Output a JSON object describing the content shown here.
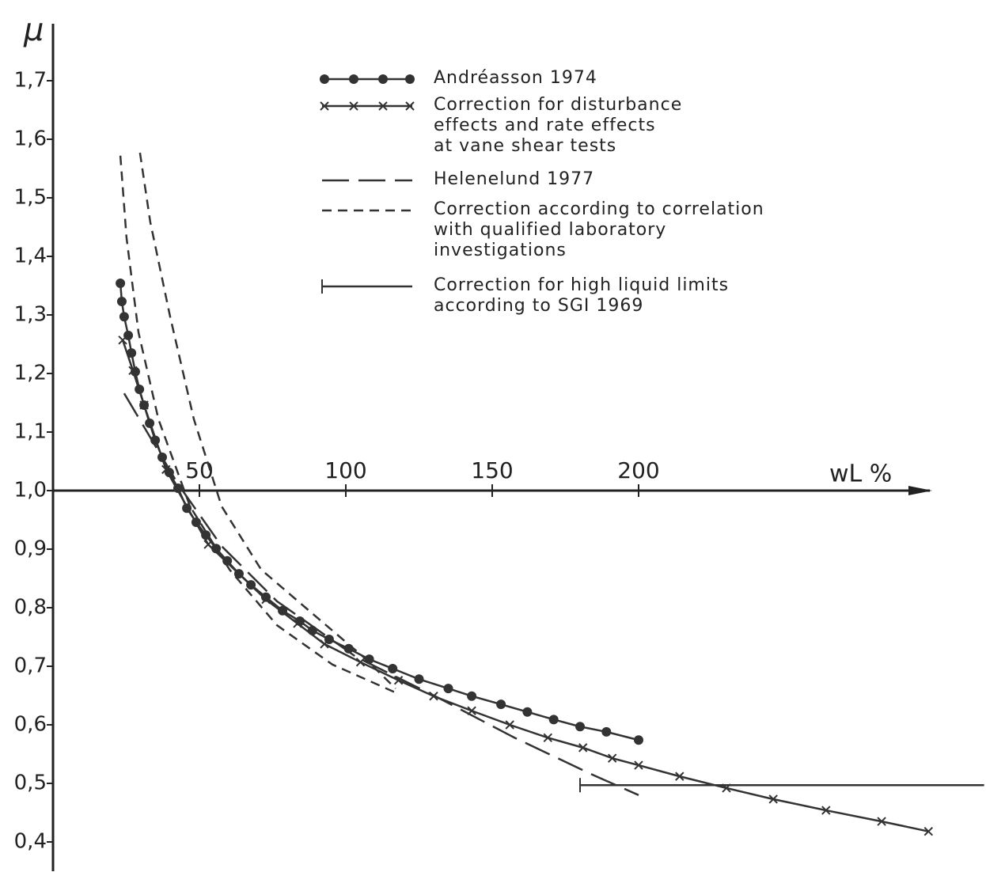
{
  "chart_data": {
    "type": "line",
    "y_label": "μ",
    "x_label": "wL %",
    "xlim": [
      0,
      318
    ],
    "ylim": [
      0.35,
      1.8
    ],
    "xticks": [
      50,
      100,
      150,
      200
    ],
    "yticks": [
      {
        "value": 0.4,
        "label": "0,4"
      },
      {
        "value": 0.5,
        "label": "0,5"
      },
      {
        "value": 0.6,
        "label": "0,6"
      },
      {
        "value": 0.7,
        "label": "0,7"
      },
      {
        "value": 0.8,
        "label": "0,8"
      },
      {
        "value": 0.9,
        "label": "0,9"
      },
      {
        "value": 1.0,
        "label": "1,0"
      },
      {
        "value": 1.1,
        "label": "1,1"
      },
      {
        "value": 1.2,
        "label": "1,2"
      },
      {
        "value": 1.3,
        "label": "1,3"
      },
      {
        "value": 1.4,
        "label": "1,4"
      },
      {
        "value": 1.5,
        "label": "1,5"
      },
      {
        "value": 1.6,
        "label": "1,6"
      },
      {
        "value": 1.7,
        "label": "1,7"
      }
    ],
    "x_axis_at": 1.0,
    "series": [
      {
        "name": "Andréasson 1974",
        "color": "#333333",
        "marker": "circle",
        "dash": "solid",
        "x": [
          23,
          23.5,
          24.3,
          25.7,
          26.8,
          28.1,
          29.5,
          31.1,
          33,
          34.9,
          37.3,
          39.7,
          42.7,
          45.7,
          48.9,
          52.2,
          55.7,
          59.5,
          63.5,
          67.6,
          72.7,
          78.4,
          84.3,
          88.6,
          94.3,
          101,
          108,
          116,
          125,
          135,
          143,
          153,
          162,
          171,
          180,
          189,
          200
        ],
        "values": [
          1.354,
          1.323,
          1.297,
          1.265,
          1.235,
          1.203,
          1.173,
          1.146,
          1.115,
          1.086,
          1.057,
          1.031,
          1.004,
          0.97,
          0.946,
          0.924,
          0.901,
          0.88,
          0.858,
          0.839,
          0.818,
          0.795,
          0.777,
          0.761,
          0.746,
          0.73,
          0.712,
          0.696,
          0.678,
          0.662,
          0.649,
          0.635,
          0.622,
          0.609,
          0.597,
          0.588,
          0.574
        ]
      },
      {
        "name": "Correction  for  disturbance\neffects and rate effects\nat vane  shear  tests",
        "color": "#333333",
        "marker": "x",
        "dash": "solid",
        "x": [
          23.8,
          27.3,
          31.1,
          38.6,
          53,
          72.7,
          83.5,
          92.7,
          105,
          118,
          130,
          143,
          156,
          169,
          181,
          191,
          200,
          214,
          230,
          246,
          264,
          283,
          299
        ],
        "values": [
          1.257,
          1.205,
          1.146,
          1.036,
          0.908,
          0.814,
          0.773,
          0.738,
          0.707,
          0.676,
          0.649,
          0.624,
          0.6,
          0.578,
          0.561,
          0.543,
          0.531,
          0.512,
          0.492,
          0.473,
          0.454,
          0.435,
          0.418
        ]
      },
      {
        "name": "Helenelund 1977",
        "color": "#333333",
        "marker": "none",
        "dash": "long",
        "x": [
          24.3,
          42.7,
          57.6,
          76.5,
          103.5,
          130.5,
          157.6,
          184.6,
          200
        ],
        "values": [
          1.166,
          1.011,
          0.905,
          0.811,
          0.716,
          0.649,
          0.578,
          0.514,
          0.48
        ]
      },
      {
        "name": "Correction according to correlation\nwith qualified laboratory\ninvestigations",
        "color": "#333333",
        "marker": "none",
        "dash": "short",
        "x": [
          23,
          25.1,
          29.2,
          36,
          46.8,
          60.3,
          76.5,
          95.4,
          117,
          null,
          29.7,
          33.2,
          40,
          48.1,
          57.6,
          71.1,
          90,
          106,
          117
        ],
        "values": [
          1.572,
          1.432,
          1.27,
          1.122,
          0.973,
          0.865,
          0.77,
          0.703,
          0.655,
          null,
          1.577,
          1.459,
          1.297,
          1.122,
          0.973,
          0.865,
          0.784,
          0.716,
          0.662
        ]
      },
      {
        "name": "Correction  for  high  liquid  limits\naccording to SGI 1969",
        "color": "#333333",
        "marker": "bar-start",
        "dash": "solid",
        "x": [
          180,
          318
        ],
        "values": [
          0.497,
          0.497
        ]
      }
    ]
  }
}
